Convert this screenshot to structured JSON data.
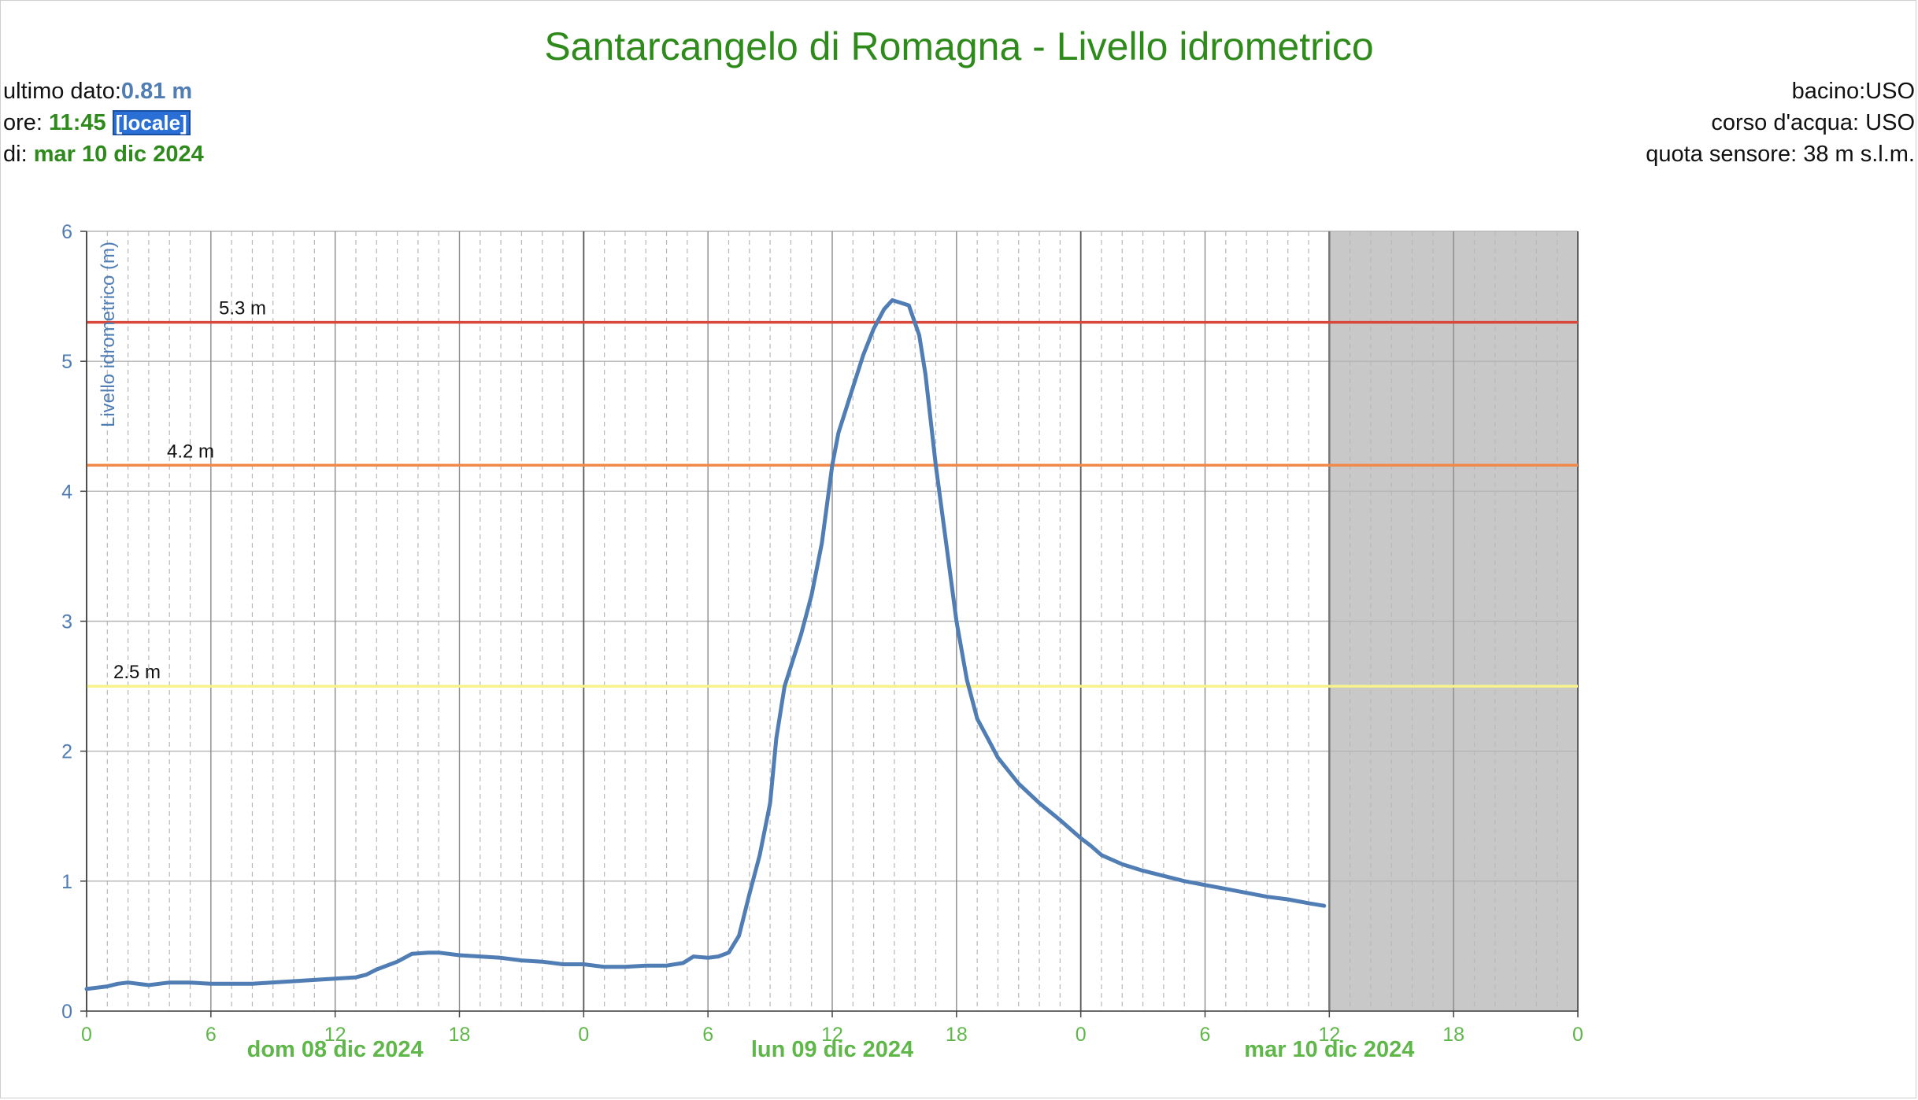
{
  "header": {
    "title": "Santarcangelo di Romagna - Livello idrometrico",
    "last_value_label": "ultimo dato:",
    "last_value": "0.81 m",
    "time_label": "ore: ",
    "time_value": "11:45",
    "locale_label": "[locale]",
    "date_label": "di: ",
    "date_value": "mar 10 dic 2024",
    "basin": "bacino:USO",
    "river": "corso d'acqua: USO",
    "sensor_altitude": "quota sensore: 38 m s.l.m."
  },
  "colors": {
    "line": "#4f7db4",
    "threshold_red": "#d9473a",
    "threshold_orange": "#f0884a",
    "threshold_yellow": "#f7f28a",
    "axis_text": "#4f7db4",
    "date_text": "#5fb74a",
    "future_shade": "#c8c8c8"
  },
  "chart_data": {
    "type": "line",
    "ylabel": "Livello idrometrico (m)",
    "ylim": [
      0,
      6
    ],
    "yticks": [
      "0",
      "1",
      "2",
      "3",
      "4",
      "5",
      "6"
    ],
    "x_unit": "hours",
    "xlim_hours": [
      0,
      72
    ],
    "xticks": [
      {
        "h": 0,
        "label": "0"
      },
      {
        "h": 6,
        "label": "6"
      },
      {
        "h": 12,
        "label": "12"
      },
      {
        "h": 18,
        "label": "18"
      },
      {
        "h": 24,
        "label": "0"
      },
      {
        "h": 30,
        "label": "6"
      },
      {
        "h": 36,
        "label": "12"
      },
      {
        "h": 42,
        "label": "18"
      },
      {
        "h": 48,
        "label": "0"
      },
      {
        "h": 54,
        "label": "6"
      },
      {
        "h": 60,
        "label": "12"
      },
      {
        "h": 66,
        "label": "18"
      },
      {
        "h": 72,
        "label": "0"
      }
    ],
    "date_labels": [
      {
        "h": 12,
        "label": "dom 08 dic 2024"
      },
      {
        "h": 36,
        "label": "lun 09 dic 2024"
      },
      {
        "h": 60,
        "label": "mar 10 dic 2024"
      }
    ],
    "future_start_hour": 60,
    "thresholds": [
      {
        "value": 5.3,
        "label": "5.3 m",
        "color": "#d9473a"
      },
      {
        "value": 4.2,
        "label": "4.2 m",
        "color": "#f0884a"
      },
      {
        "value": 2.5,
        "label": "2.5 m",
        "color": "#f7f28a"
      }
    ],
    "grid": true,
    "series": [
      {
        "values": [
          [
            0,
            0.17
          ],
          [
            1,
            0.19
          ],
          [
            1.5,
            0.21
          ],
          [
            2,
            0.22
          ],
          [
            3,
            0.2
          ],
          [
            3.5,
            0.21
          ],
          [
            4,
            0.22
          ],
          [
            5,
            0.22
          ],
          [
            6,
            0.21
          ],
          [
            8,
            0.21
          ],
          [
            10,
            0.23
          ],
          [
            11,
            0.24
          ],
          [
            12,
            0.25
          ],
          [
            13,
            0.26
          ],
          [
            13.5,
            0.28
          ],
          [
            14,
            0.32
          ],
          [
            15,
            0.38
          ],
          [
            15.7,
            0.44
          ],
          [
            16.5,
            0.45
          ],
          [
            17,
            0.45
          ],
          [
            18,
            0.43
          ],
          [
            19,
            0.42
          ],
          [
            20,
            0.41
          ],
          [
            21,
            0.39
          ],
          [
            22,
            0.38
          ],
          [
            23,
            0.36
          ],
          [
            24,
            0.36
          ],
          [
            25,
            0.34
          ],
          [
            26,
            0.34
          ],
          [
            27,
            0.35
          ],
          [
            28,
            0.35
          ],
          [
            28.8,
            0.37
          ],
          [
            29.3,
            0.42
          ],
          [
            30,
            0.41
          ],
          [
            30.5,
            0.42
          ],
          [
            31,
            0.45
          ],
          [
            31.5,
            0.58
          ],
          [
            32,
            0.9
          ],
          [
            32.5,
            1.2
          ],
          [
            33,
            1.6
          ],
          [
            33.3,
            2.1
          ],
          [
            33.7,
            2.5
          ],
          [
            34,
            2.65
          ],
          [
            34.5,
            2.9
          ],
          [
            35,
            3.2
          ],
          [
            35.5,
            3.6
          ],
          [
            36,
            4.2
          ],
          [
            36.3,
            4.45
          ],
          [
            36.6,
            4.6
          ],
          [
            37,
            4.8
          ],
          [
            37.5,
            5.05
          ],
          [
            38,
            5.25
          ],
          [
            38.5,
            5.4
          ],
          [
            38.9,
            5.47
          ],
          [
            39.3,
            5.45
          ],
          [
            39.7,
            5.43
          ],
          [
            40.2,
            5.2
          ],
          [
            40.5,
            4.9
          ],
          [
            41,
            4.2
          ],
          [
            41.5,
            3.6
          ],
          [
            42,
            3.0
          ],
          [
            42.5,
            2.55
          ],
          [
            43,
            2.25
          ],
          [
            43.5,
            2.1
          ],
          [
            44,
            1.95
          ],
          [
            45,
            1.75
          ],
          [
            46,
            1.6
          ],
          [
            47,
            1.47
          ],
          [
            48,
            1.33
          ],
          [
            48.5,
            1.27
          ],
          [
            49,
            1.2
          ],
          [
            50,
            1.13
          ],
          [
            51,
            1.08
          ],
          [
            52,
            1.04
          ],
          [
            53,
            1.0
          ],
          [
            54,
            0.97
          ],
          [
            55,
            0.94
          ],
          [
            56,
            0.91
          ],
          [
            57,
            0.88
          ],
          [
            58,
            0.86
          ],
          [
            59,
            0.83
          ],
          [
            59.75,
            0.81
          ]
        ]
      }
    ]
  }
}
